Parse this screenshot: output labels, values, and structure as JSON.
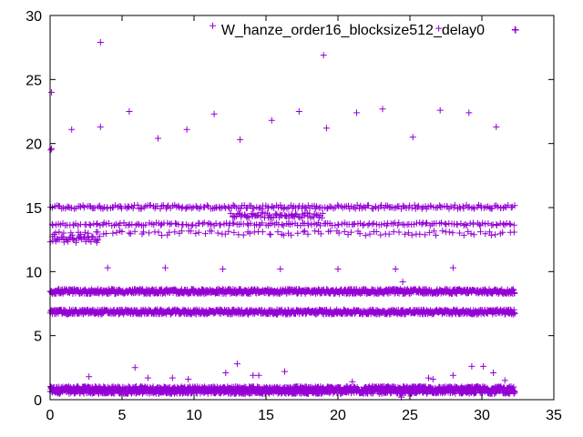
{
  "chart_data": {
    "type": "scatter",
    "title": "",
    "xlabel": "",
    "ylabel": "",
    "xlim": [
      0,
      35
    ],
    "ylim": [
      0,
      30
    ],
    "xticks": [
      "0",
      "5",
      "10",
      "15",
      "20",
      "25",
      "30",
      "35"
    ],
    "yticks": [
      "0",
      "5",
      "10",
      "15",
      "20",
      "25",
      "30"
    ],
    "grid": false,
    "legend_position": "top-right",
    "marker": "plus",
    "color": "#9400D3",
    "series": [
      {
        "name": "W_hanze_order16_blocksize512_delay0",
        "bands": [
          {
            "x_range": [
              0,
              32.3
            ],
            "y_center": 0.75,
            "spread": 0.28,
            "count": 1500
          },
          {
            "x_range": [
              0,
              32.3
            ],
            "y_center": 6.85,
            "spread": 0.18,
            "count": 900
          },
          {
            "x_range": [
              0,
              32.3
            ],
            "y_center": 8.45,
            "spread": 0.18,
            "count": 900
          },
          {
            "x_range": [
              0,
              32.3
            ],
            "y_center": 15.05,
            "spread": 0.15,
            "count": 260
          },
          {
            "x_range": [
              0,
              32.3
            ],
            "y_center": 13.7,
            "spread": 0.12,
            "count": 200
          },
          {
            "x_range": [
              0,
              32.3
            ],
            "y_center": 13.0,
            "spread": 0.18,
            "count": 110
          },
          {
            "x_range": [
              12.5,
              19
            ],
            "y_center": 14.4,
            "spread": 0.2,
            "count": 70
          },
          {
            "x_range": [
              0,
              3.5
            ],
            "y_center": 12.5,
            "spread": 0.25,
            "count": 40
          }
        ],
        "outliers": [
          [
            0.1,
            24.0
          ],
          [
            0.1,
            19.6
          ],
          [
            0.05,
            19.5
          ],
          [
            3.5,
            27.9
          ],
          [
            3.5,
            21.3
          ],
          [
            1.5,
            21.1
          ],
          [
            5.5,
            22.5
          ],
          [
            7.5,
            20.4
          ],
          [
            9.5,
            21.1
          ],
          [
            11.3,
            29.2
          ],
          [
            11.4,
            22.3
          ],
          [
            13.2,
            20.3
          ],
          [
            15.4,
            21.8
          ],
          [
            17.3,
            22.5
          ],
          [
            19.0,
            26.9
          ],
          [
            19.2,
            21.2
          ],
          [
            21.3,
            22.4
          ],
          [
            23.1,
            22.7
          ],
          [
            25.2,
            20.5
          ],
          [
            27.1,
            22.6
          ],
          [
            29.1,
            22.4
          ],
          [
            31.0,
            21.3
          ],
          [
            27.0,
            29.0
          ],
          [
            32.3,
            28.9
          ],
          [
            4.0,
            10.3
          ],
          [
            8.0,
            10.3
          ],
          [
            12.0,
            10.2
          ],
          [
            16.0,
            10.2
          ],
          [
            20.0,
            10.2
          ],
          [
            24.0,
            10.2
          ],
          [
            28.0,
            10.3
          ],
          [
            24.5,
            9.2
          ],
          [
            2.7,
            1.8
          ],
          [
            5.9,
            2.5
          ],
          [
            6.8,
            1.7
          ],
          [
            8.5,
            1.7
          ],
          [
            9.6,
            1.6
          ],
          [
            12.2,
            2.1
          ],
          [
            13.0,
            2.8
          ],
          [
            14.1,
            1.9
          ],
          [
            14.5,
            1.9
          ],
          [
            16.3,
            2.2
          ],
          [
            21.0,
            1.4
          ],
          [
            26.3,
            1.7
          ],
          [
            26.6,
            1.6
          ],
          [
            28.0,
            1.9
          ],
          [
            29.3,
            2.6
          ],
          [
            30.1,
            2.6
          ],
          [
            30.8,
            2.1
          ],
          [
            31.6,
            1.5
          ],
          [
            24.4,
            0.2
          ]
        ]
      }
    ]
  }
}
